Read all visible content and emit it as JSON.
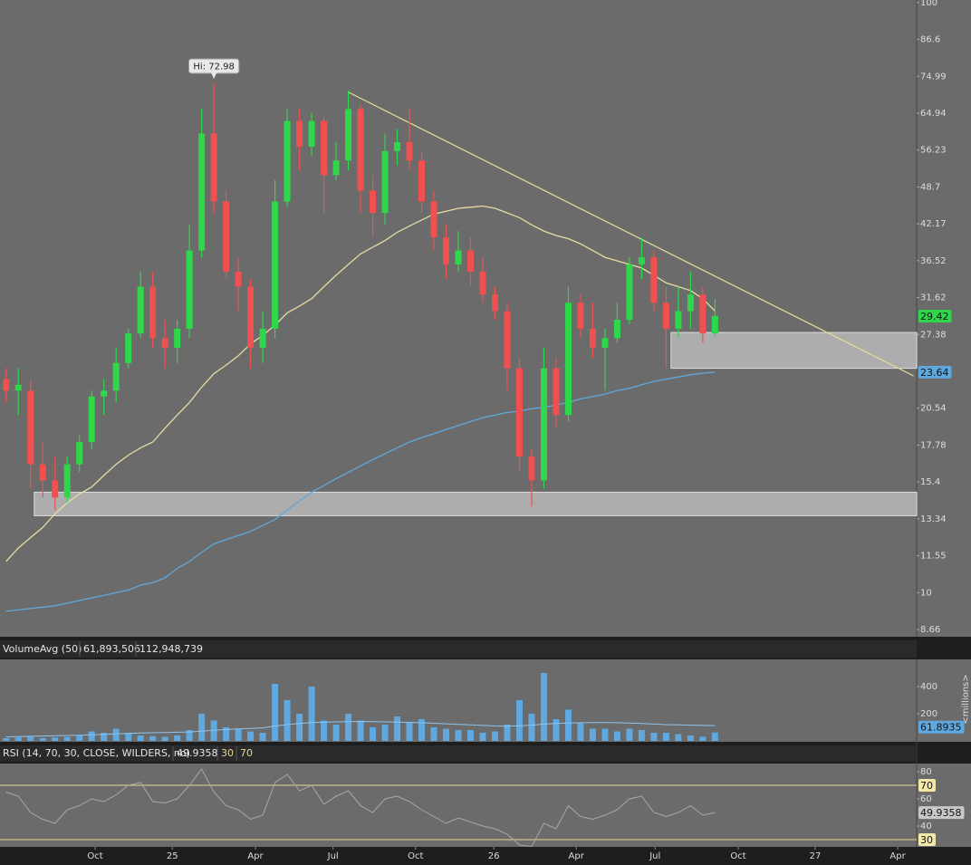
{
  "chart_data": [
    {
      "type": "candlestick",
      "annotation": "Hi: 72.98",
      "log_scale": true,
      "xlim": [
        0,
        150
      ],
      "ylim": [
        8.42,
        101
      ],
      "yticks": [
        100,
        86.6,
        74.99,
        64.94,
        56.23,
        48.7,
        42.17,
        36.52,
        31.62,
        27.38,
        20.54,
        17.78,
        15.4,
        13.34,
        11.55,
        10,
        8.66
      ],
      "xticks": [
        {
          "value": 15.56,
          "label": "Oct"
        },
        {
          "value": 28.2,
          "label": "25"
        },
        {
          "value": 41.8,
          "label": "Apr"
        },
        {
          "value": 54.5,
          "label": "Jul"
        },
        {
          "value": 68,
          "label": "Oct"
        },
        {
          "value": 80.8,
          "label": "26"
        },
        {
          "value": 94.3,
          "label": "Apr"
        },
        {
          "value": 107.2,
          "label": "Jul"
        },
        {
          "value": 120.8,
          "label": "Oct"
        },
        {
          "value": 133.4,
          "label": "27"
        },
        {
          "value": 146.9,
          "label": "Apr"
        }
      ],
      "up_color": "#2ed84a",
      "down_color": "#f05050",
      "x": [
        1,
        3,
        5,
        7,
        9,
        11,
        13,
        15,
        17,
        19,
        21,
        23,
        25,
        27,
        29,
        31,
        33,
        35,
        37,
        39,
        41,
        43,
        45,
        47,
        49,
        51,
        53,
        55,
        57,
        59,
        61,
        63,
        65,
        67,
        69,
        71,
        73,
        75,
        77,
        79,
        81,
        83,
        85,
        87,
        89,
        91,
        93,
        95,
        97,
        99,
        101,
        103,
        105,
        107,
        109,
        111,
        113,
        115,
        117
      ],
      "open": [
        23,
        22,
        22,
        16.5,
        15.5,
        14.5,
        16.5,
        18,
        21.5,
        22,
        24.5,
        27.5,
        33,
        27,
        26,
        28,
        38,
        60,
        46,
        35,
        33,
        26,
        28,
        46,
        63,
        57,
        63,
        51,
        54,
        66,
        48,
        44,
        56,
        58,
        54,
        46,
        40,
        36,
        38,
        35,
        32,
        30,
        24,
        17,
        15.5,
        24,
        20,
        31,
        28,
        26,
        27,
        29,
        36,
        37,
        31,
        28,
        30,
        32,
        27.5
      ],
      "high": [
        24,
        24,
        23,
        18,
        17,
        17,
        18.5,
        22,
        23,
        26,
        28,
        35,
        35,
        29,
        29,
        42,
        66,
        72.98,
        48,
        37,
        34,
        30,
        50,
        66,
        66,
        65,
        64,
        58,
        71,
        67,
        51,
        60,
        61,
        66,
        56,
        48,
        42,
        41,
        40,
        37,
        33,
        31,
        25,
        17.5,
        26,
        25,
        33,
        32,
        31,
        28,
        31,
        37,
        40,
        38,
        33,
        33,
        35,
        33,
        31.5
      ],
      "low": [
        21,
        20,
        15,
        14.5,
        13.8,
        14.2,
        16,
        17.5,
        20,
        21,
        24,
        27,
        26,
        24,
        24.5,
        27,
        37,
        44,
        34,
        30,
        24,
        24.5,
        27,
        45,
        52,
        55,
        44,
        50,
        52,
        44,
        40,
        42,
        53,
        52,
        44,
        38,
        34,
        35,
        33,
        31,
        29,
        22,
        16,
        14,
        15,
        19,
        19.5,
        27,
        25,
        22,
        26.5,
        28.5,
        34,
        30,
        24,
        27,
        28,
        26.5,
        27
      ],
      "close": [
        22,
        22.5,
        16.5,
        15.5,
        14.5,
        16.5,
        18,
        21.5,
        22,
        24.5,
        27.5,
        33,
        27,
        26,
        28,
        38,
        60,
        46,
        35,
        33,
        26,
        28,
        46,
        63,
        57,
        63,
        51,
        54,
        66,
        48,
        44,
        56,
        58,
        54,
        46,
        40,
        36,
        38,
        35,
        32,
        30,
        24,
        17,
        15.5,
        24,
        20,
        31,
        28,
        26,
        27,
        29,
        36,
        37,
        31,
        28,
        30,
        32,
        27.5,
        29.42
      ],
      "lines": [
        {
          "color": "#e8dca0",
          "values": [
            11.3,
            11.9,
            12.4,
            12.9,
            13.6,
            14.2,
            14.7,
            15.1,
            15.8,
            16.5,
            17.1,
            17.6,
            18,
            19,
            20,
            21,
            22.3,
            23.5,
            24.3,
            25.2,
            26.4,
            27.3,
            28.4,
            29.8,
            30.6,
            31.5,
            33,
            34.5,
            36,
            37.5,
            38.5,
            39.5,
            40.8,
            41.8,
            42.8,
            43.8,
            44.3,
            44.8,
            45,
            45.2,
            44.8,
            44,
            43.2,
            42,
            41,
            40.3,
            39.8,
            39,
            38,
            37,
            36.5,
            36,
            35.5,
            34.5,
            33.5,
            33,
            32.5,
            31.5,
            30
          ]
        },
        {
          "color": "#5fa8dc",
          "show_tag": true,
          "values": [
            9.3,
            9.35,
            9.4,
            9.45,
            9.5,
            9.6,
            9.7,
            9.8,
            9.9,
            10,
            10.1,
            10.3,
            10.4,
            10.6,
            11,
            11.3,
            11.7,
            12.1,
            12.3,
            12.5,
            12.7,
            13,
            13.3,
            13.8,
            14.3,
            14.8,
            15.2,
            15.6,
            16,
            16.4,
            16.8,
            17.2,
            17.6,
            18,
            18.3,
            18.6,
            18.9,
            19.2,
            19.5,
            19.8,
            20,
            20.2,
            20.3,
            20.5,
            20.6,
            20.8,
            21,
            21.3,
            21.5,
            21.7,
            22,
            22.2,
            22.5,
            22.8,
            23,
            23.2,
            23.4,
            23.55,
            23.64
          ]
        }
      ],
      "trendline": {
        "x": [
          57,
          149.5
        ],
        "y": [
          70.5,
          23.3
        ]
      },
      "zones": [
        {
          "x": [
            5.6,
            150
          ],
          "y": [
            13.5,
            14.8
          ]
        },
        {
          "x": [
            109.8,
            150
          ],
          "y": [
            24,
            27.6
          ]
        }
      ]
    },
    {
      "type": "bar",
      "title": "VolumeAvg (50)",
      "legend_values": [
        "61,893,506",
        "112,948,739"
      ],
      "axis_label": "<millions>",
      "color": "#5fa8e0",
      "xlim": [
        0,
        150
      ],
      "ylim": [
        0,
        600
      ],
      "yticks": [
        200,
        400
      ],
      "x": [
        1,
        3,
        5,
        7,
        9,
        11,
        13,
        15,
        17,
        19,
        21,
        23,
        25,
        27,
        29,
        31,
        33,
        35,
        37,
        39,
        41,
        43,
        45,
        47,
        49,
        51,
        53,
        55,
        57,
        59,
        61,
        63,
        65,
        67,
        69,
        71,
        73,
        75,
        77,
        79,
        81,
        83,
        85,
        87,
        89,
        91,
        93,
        95,
        97,
        99,
        101,
        103,
        105,
        107,
        109,
        111,
        113,
        115,
        117
      ],
      "values": [
        20,
        25,
        30,
        20,
        25,
        30,
        40,
        70,
        60,
        90,
        60,
        40,
        35,
        30,
        40,
        80,
        200,
        150,
        100,
        90,
        70,
        60,
        420,
        300,
        200,
        400,
        150,
        120,
        200,
        150,
        100,
        120,
        180,
        140,
        160,
        100,
        90,
        80,
        80,
        60,
        70,
        120,
        300,
        200,
        500,
        160,
        230,
        130,
        90,
        90,
        70,
        90,
        80,
        60,
        60,
        50,
        40,
        30,
        61.8935
      ],
      "avg": {
        "color": "#8fc4ee",
        "values": [
          30,
          32,
          34,
          36,
          38,
          40,
          42,
          45,
          48,
          52,
          55,
          58,
          60,
          62,
          64,
          66,
          72,
          78,
          84,
          88,
          92,
          96,
          110,
          120,
          128,
          135,
          138,
          140,
          142,
          143,
          142,
          140,
          138,
          136,
          134,
          130,
          126,
          122,
          118,
          114,
          110,
          108,
          112,
          116,
          124,
          128,
          132,
          134,
          135,
          135,
          134,
          132,
          128,
          124,
          120,
          118,
          116,
          114,
          112.948739
        ]
      }
    },
    {
      "type": "line",
      "title": "RSI (14, 70, 30, CLOSE, WILDERS, no)",
      "color": "#a8a8a8",
      "level_color": "#e8d890",
      "levels": [
        30,
        70
      ],
      "xlim": [
        0,
        150
      ],
      "ylim": [
        24.67,
        86
      ],
      "yticks": [
        40,
        60,
        80
      ],
      "x": [
        1,
        3,
        5,
        7,
        9,
        11,
        13,
        15,
        17,
        19,
        21,
        23,
        25,
        27,
        29,
        31,
        33,
        35,
        37,
        39,
        41,
        43,
        45,
        47,
        49,
        51,
        53,
        55,
        57,
        59,
        61,
        63,
        65,
        67,
        69,
        71,
        73,
        75,
        77,
        79,
        81,
        83,
        85,
        87,
        89,
        91,
        93,
        95,
        97,
        99,
        101,
        103,
        105,
        107,
        109,
        111,
        113,
        115,
        117
      ],
      "values": [
        65,
        62,
        50,
        45,
        42,
        52,
        55,
        60,
        58,
        63,
        70,
        72,
        58,
        57,
        60,
        70,
        82,
        65,
        55,
        52,
        45,
        48,
        72,
        78,
        66,
        70,
        56,
        62,
        66,
        55,
        50,
        60,
        62,
        58,
        52,
        47,
        42,
        46,
        43,
        40,
        38,
        34,
        26,
        25,
        42,
        38,
        55,
        47,
        45,
        48,
        52,
        60,
        62,
        50,
        47,
        50,
        55,
        48,
        49.9358
      ]
    }
  ]
}
